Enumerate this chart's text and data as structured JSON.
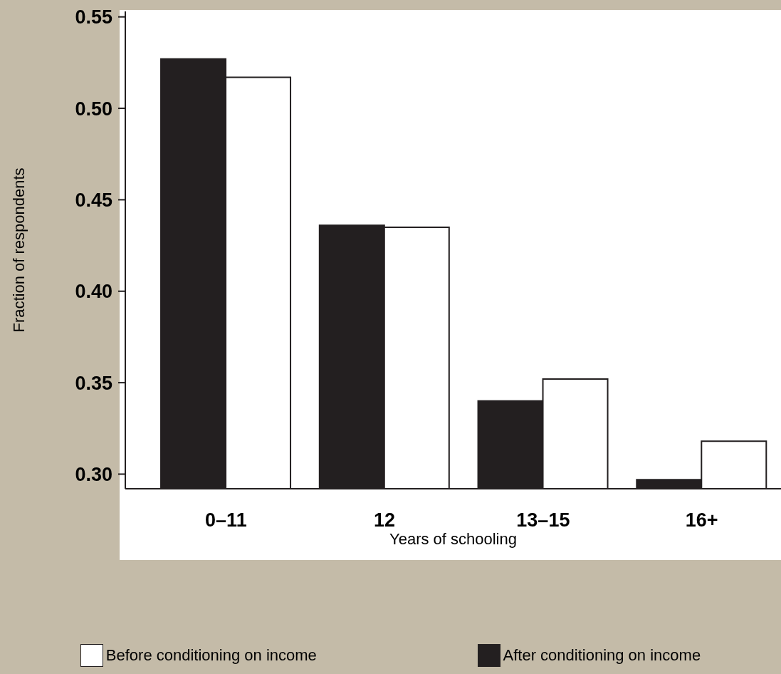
{
  "chart_data": {
    "type": "bar",
    "xlabel": "Years of schooling",
    "ylabel": "Fraction of respondents",
    "categories": [
      "0–11",
      "12",
      "13–15",
      "16+"
    ],
    "series": [
      {
        "name": "After conditioning on income",
        "color": "#231f20",
        "values": [
          0.527,
          0.436,
          0.34,
          0.297
        ]
      },
      {
        "name": "Before conditioning on income",
        "color": "#ffffff",
        "values": [
          0.517,
          0.435,
          0.352,
          0.318
        ]
      }
    ],
    "ylim": [
      0.292,
      0.553
    ],
    "yticks": [
      {
        "value": 0.3,
        "label": "0.30"
      },
      {
        "value": 0.35,
        "label": "0.35"
      },
      {
        "value": 0.4,
        "label": "0.40"
      },
      {
        "value": 0.45,
        "label": "0.45"
      },
      {
        "value": 0.5,
        "label": "0.50"
      },
      {
        "value": 0.55,
        "label": "0.55"
      }
    ],
    "grid": false,
    "legend": "bottom"
  }
}
